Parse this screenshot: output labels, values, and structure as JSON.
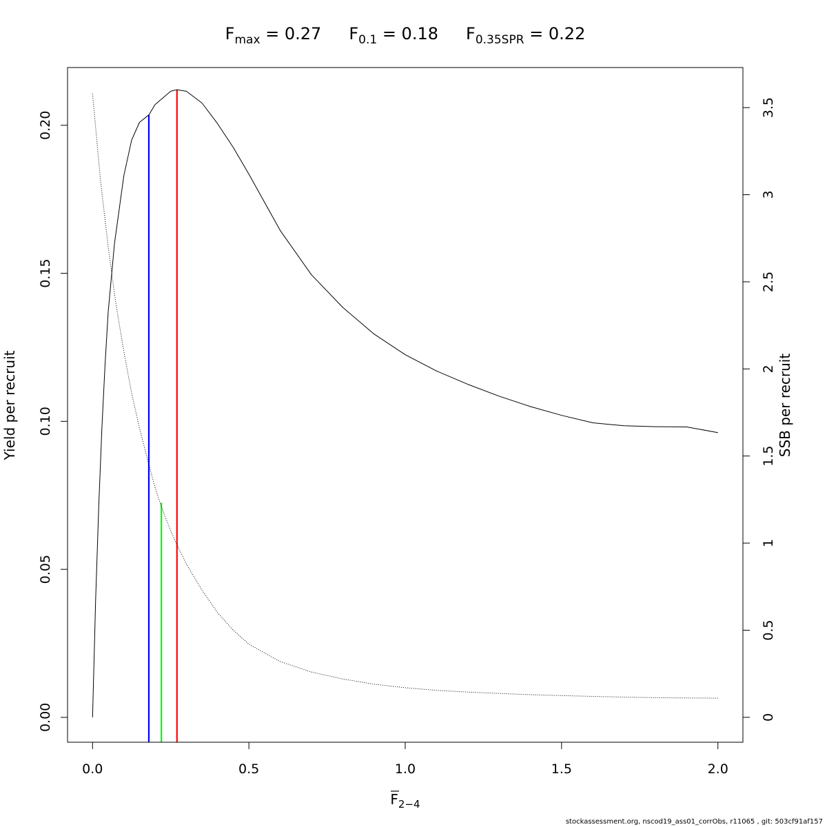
{
  "chart_data": {
    "type": "line",
    "title": {
      "items": [
        {
          "main": "F",
          "sub": "max",
          "rest": " = 0.27"
        },
        {
          "main": "F",
          "sub": "0.1",
          "rest": " = 0.18"
        },
        {
          "main": "F",
          "sub": "0.35SPR",
          "rest": " = 0.22"
        }
      ]
    },
    "xlabel": {
      "main": "F",
      "sub": "2−4"
    },
    "ylabel": "Yield per recruit",
    "y2label": "SSB per recruit",
    "xlim": [
      -0.08,
      2.08
    ],
    "ylim": [
      -0.0084,
      0.2195
    ],
    "y2lim": [
      -0.143,
      3.73
    ],
    "x_ticks": [
      0.0,
      0.5,
      1.0,
      1.5,
      2.0
    ],
    "x_tick_labels": [
      "0.0",
      "0.5",
      "1.0",
      "1.5",
      "2.0"
    ],
    "y_ticks": [
      0.0,
      0.05,
      0.1,
      0.15,
      0.2
    ],
    "y_tick_labels": [
      "0.00",
      "0.05",
      "0.10",
      "0.15",
      "0.20"
    ],
    "y2_ticks": [
      0,
      0.5,
      1,
      1.5,
      2,
      2.5,
      3,
      3.5
    ],
    "y2_tick_labels": [
      "0",
      "0.5",
      "1",
      "1.5",
      "2",
      "2.5",
      "3",
      "3.5"
    ],
    "grid": false,
    "legend": "none",
    "series": [
      {
        "axis": "left",
        "style": "solid",
        "color": "#000000",
        "x": [
          0,
          0.01,
          0.02,
          0.03,
          0.04,
          0.05,
          0.07,
          0.1,
          0.125,
          0.15,
          0.18,
          0.2,
          0.25,
          0.27,
          0.3,
          0.35,
          0.4,
          0.45,
          0.5,
          0.6,
          0.7,
          0.8,
          0.9,
          1.0,
          1.1,
          1.2,
          1.3,
          1.4,
          1.5,
          1.6,
          1.7,
          1.8,
          1.9,
          2.0
        ],
        "y": [
          0,
          0.04,
          0.072,
          0.098,
          0.119,
          0.137,
          0.16,
          0.183,
          0.195,
          0.201,
          0.2035,
          0.207,
          0.2115,
          0.212,
          0.2115,
          0.2075,
          0.2005,
          0.1925,
          0.1835,
          0.1645,
          0.1495,
          0.1385,
          0.1295,
          0.1225,
          0.117,
          0.1125,
          0.1085,
          0.105,
          0.102,
          0.0995,
          0.0985,
          0.0982,
          0.0981,
          0.0962
        ]
      },
      {
        "axis": "right",
        "style": "dotted",
        "color": "#000000",
        "x": [
          0,
          0.025,
          0.05,
          0.075,
          0.1,
          0.125,
          0.15,
          0.18,
          0.2,
          0.22,
          0.25,
          0.27,
          0.3,
          0.35,
          0.4,
          0.45,
          0.5,
          0.6,
          0.7,
          0.8,
          0.9,
          1.0,
          1.1,
          1.2,
          1.3,
          1.4,
          1.5,
          1.6,
          1.7,
          1.8,
          1.9,
          2.0
        ],
        "y": [
          3.58,
          3.09,
          2.7,
          2.37,
          2.1,
          1.86,
          1.66,
          1.45,
          1.32,
          1.21,
          1.07,
          0.99,
          0.88,
          0.73,
          0.6,
          0.5,
          0.42,
          0.32,
          0.26,
          0.22,
          0.19,
          0.17,
          0.155,
          0.145,
          0.137,
          0.13,
          0.125,
          0.12,
          0.116,
          0.113,
          0.111,
          0.11
        ]
      }
    ],
    "reference_lines": [
      {
        "x": 0.18,
        "y_top": 0.2035,
        "color": "#0000ff"
      },
      {
        "x": 0.22,
        "y_top": 0.0725,
        "color": "#00ff00"
      },
      {
        "x": 0.27,
        "y_top": 0.212,
        "color": "#ff0000"
      }
    ]
  },
  "footer": "stockassessment.org, nscod19_ass01_corrObs, r11065 , git: 503cf91af157"
}
